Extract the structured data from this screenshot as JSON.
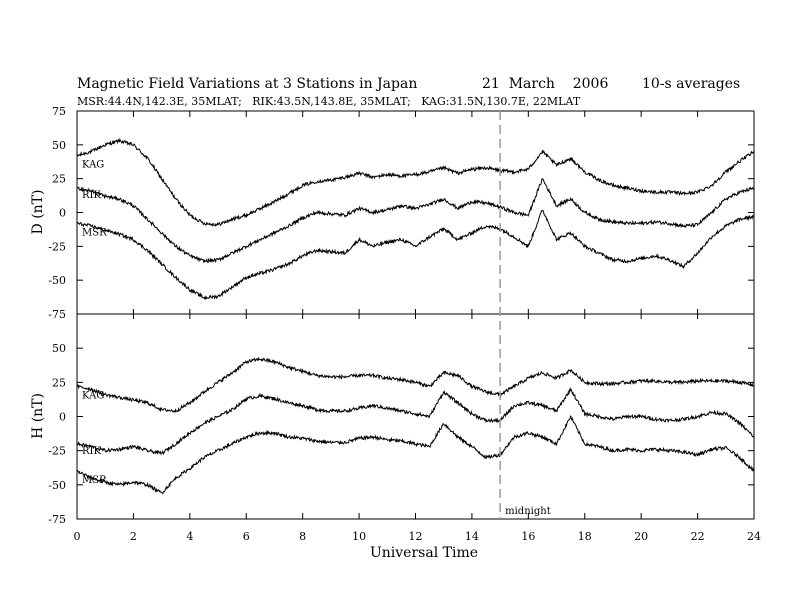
{
  "chart_data": {
    "type": "line",
    "title": "Magnetic Field Variations at 3 Stations in Japan",
    "date": "21  March    2006",
    "averaging": "10-s averages",
    "subtitle": "MSR:44.4N,142.3E, 35MLAT;   RIK:43.5N,143.8E, 35MLAT;   KAG:31.5N,130.7E, 22MLAT",
    "xlabel": "Universal Time",
    "xlim": [
      0,
      24
    ],
    "xticks": [
      "0",
      "2",
      "4",
      "6",
      "8",
      "10",
      "12",
      "14",
      "16",
      "18",
      "20",
      "22",
      "24"
    ],
    "grid": false,
    "annotation": {
      "x": 15,
      "text": "midnight"
    },
    "panels": [
      {
        "ylabel": "D (nT)",
        "ylim": [
          -75,
          75
        ],
        "yticks": [
          "75",
          "50",
          "25",
          "0",
          "-25",
          "-50",
          "-75"
        ],
        "series": [
          {
            "name": "KAG",
            "x": [
              0,
              0.5,
              1,
              1.5,
              2,
              2.5,
              3,
              3.5,
              4,
              4.5,
              5,
              5.5,
              6,
              6.5,
              7,
              7.5,
              8,
              8.5,
              9,
              9.5,
              10,
              10.5,
              11,
              11.5,
              12,
              12.5,
              13,
              13.5,
              14,
              14.5,
              15,
              15.5,
              16,
              16.5,
              17,
              17.5,
              18,
              18.5,
              19,
              19.5,
              20,
              20.5,
              21,
              21.5,
              22,
              22.5,
              23,
              23.5,
              24
            ],
            "y": [
              42,
              45,
              50,
              53,
              50,
              40,
              25,
              10,
              -2,
              -8,
              -9,
              -5,
              -2,
              3,
              8,
              14,
              20,
              23,
              24,
              26,
              29,
              26,
              28,
              27,
              28,
              30,
              33,
              29,
              32,
              33,
              31,
              30,
              32,
              45,
              35,
              40,
              30,
              24,
              20,
              18,
              16,
              15,
              15,
              14,
              15,
              20,
              30,
              38,
              45
            ]
          },
          {
            "name": "RIK",
            "x": [
              0,
              0.5,
              1,
              1.5,
              2,
              2.5,
              3,
              3.5,
              4,
              4.5,
              5,
              5.5,
              6,
              6.5,
              7,
              7.5,
              8,
              8.5,
              9,
              9.5,
              10,
              10.5,
              11,
              11.5,
              12,
              12.5,
              13,
              13.5,
              14,
              14.5,
              15,
              15.5,
              16,
              16.5,
              17,
              17.5,
              18,
              18.5,
              19,
              19.5,
              20,
              20.5,
              21,
              21.5,
              22,
              22.5,
              23,
              23.5,
              24
            ],
            "y": [
              18,
              16,
              12,
              10,
              5,
              -5,
              -15,
              -25,
              -32,
              -36,
              -35,
              -30,
              -25,
              -20,
              -15,
              -10,
              -4,
              0,
              -1,
              -2,
              3,
              0,
              2,
              5,
              3,
              6,
              10,
              3,
              8,
              7,
              4,
              0,
              -2,
              25,
              5,
              10,
              0,
              -5,
              -7,
              -8,
              -8,
              -7,
              -8,
              -10,
              -9,
              0,
              10,
              15,
              18
            ]
          },
          {
            "name": "MSR",
            "x": [
              0,
              0.5,
              1,
              1.5,
              2,
              2.5,
              3,
              3.5,
              4,
              4.5,
              5,
              5.5,
              6,
              6.5,
              7,
              7.5,
              8,
              8.5,
              9,
              9.5,
              10,
              10.5,
              11,
              11.5,
              12,
              12.5,
              13,
              13.5,
              14,
              14.5,
              15,
              15.5,
              16,
              16.5,
              17,
              17.5,
              18,
              18.5,
              19,
              19.5,
              20,
              20.5,
              21,
              21.5,
              22,
              22.5,
              23,
              23.5,
              24
            ],
            "y": [
              -8,
              -10,
              -13,
              -16,
              -20,
              -28,
              -38,
              -48,
              -57,
              -63,
              -62,
              -55,
              -48,
              -45,
              -42,
              -38,
              -32,
              -28,
              -29,
              -30,
              -20,
              -25,
              -22,
              -20,
              -25,
              -18,
              -12,
              -20,
              -15,
              -10,
              -12,
              -18,
              -25,
              2,
              -20,
              -15,
              -25,
              -30,
              -35,
              -36,
              -34,
              -32,
              -35,
              -40,
              -30,
              -18,
              -10,
              -5,
              -3
            ]
          }
        ]
      },
      {
        "ylabel": "H (nT)",
        "ylim": [
          -75,
          75
        ],
        "yticks": [
          "50",
          "25",
          "0",
          "-25",
          "-50",
          "-75"
        ],
        "series": [
          {
            "name": "KAG",
            "x": [
              0,
              0.5,
              1,
              1.5,
              2,
              2.5,
              3,
              3.5,
              4,
              4.5,
              5,
              5.5,
              6,
              6.5,
              7,
              7.5,
              8,
              8.5,
              9,
              9.5,
              10,
              10.5,
              11,
              11.5,
              12,
              12.5,
              13,
              13.5,
              14,
              14.5,
              15,
              15.5,
              16,
              16.5,
              17,
              17.5,
              18,
              18.5,
              19,
              19.5,
              20,
              20.5,
              21,
              21.5,
              22,
              22.5,
              23,
              23.5,
              24
            ],
            "y": [
              22,
              20,
              16,
              14,
              12,
              10,
              5,
              4,
              10,
              18,
              25,
              32,
              40,
              42,
              40,
              36,
              33,
              30,
              29,
              29,
              30,
              30,
              28,
              27,
              25,
              22,
              32,
              30,
              22,
              18,
              16,
              22,
              28,
              32,
              28,
              34,
              25,
              24,
              24,
              25,
              26,
              26,
              25,
              25,
              26,
              26,
              26,
              25,
              23
            ]
          },
          {
            "name": "RIK",
            "x": [
              0,
              0.5,
              1,
              1.5,
              2,
              2.5,
              3,
              3.5,
              4,
              4.5,
              5,
              5.5,
              6,
              6.5,
              7,
              7.5,
              8,
              8.5,
              9,
              9.5,
              10,
              10.5,
              11,
              11.5,
              12,
              12.5,
              13,
              13.5,
              14,
              14.5,
              15,
              15.5,
              16,
              16.5,
              17,
              17.5,
              18,
              18.5,
              19,
              19.5,
              20,
              20.5,
              21,
              21.5,
              22,
              22.5,
              23,
              23.5,
              24
            ],
            "y": [
              -20,
              -22,
              -25,
              -24,
              -22,
              -25,
              -27,
              -20,
              -12,
              -5,
              0,
              5,
              13,
              15,
              13,
              10,
              8,
              5,
              4,
              4,
              6,
              8,
              6,
              4,
              2,
              0,
              18,
              10,
              2,
              -3,
              -3,
              8,
              10,
              8,
              4,
              20,
              2,
              0,
              -2,
              0,
              0,
              -2,
              -3,
              -2,
              0,
              3,
              2,
              -5,
              -15
            ]
          },
          {
            "name": "MSR",
            "x": [
              0,
              0.5,
              1,
              1.5,
              2,
              2.5,
              3,
              3.5,
              4,
              4.5,
              5,
              5.5,
              6,
              6.5,
              7,
              7.5,
              8,
              8.5,
              9,
              9.5,
              10,
              10.5,
              11,
              11.5,
              12,
              12.5,
              13,
              13.5,
              14,
              14.5,
              15,
              15.5,
              16,
              16.5,
              17,
              17.5,
              18,
              18.5,
              19,
              19.5,
              20,
              20.5,
              21,
              21.5,
              22,
              22.5,
              23,
              23.5,
              24
            ],
            "y": [
              -40,
              -45,
              -48,
              -50,
              -48,
              -50,
              -56,
              -45,
              -38,
              -30,
              -25,
              -20,
              -15,
              -12,
              -12,
              -15,
              -16,
              -18,
              -19,
              -19,
              -16,
              -15,
              -17,
              -18,
              -20,
              -22,
              -5,
              -15,
              -22,
              -30,
              -28,
              -15,
              -12,
              -15,
              -20,
              0,
              -20,
              -22,
              -25,
              -24,
              -25,
              -24,
              -25,
              -26,
              -28,
              -24,
              -23,
              -30,
              -40
            ]
          }
        ]
      }
    ]
  }
}
